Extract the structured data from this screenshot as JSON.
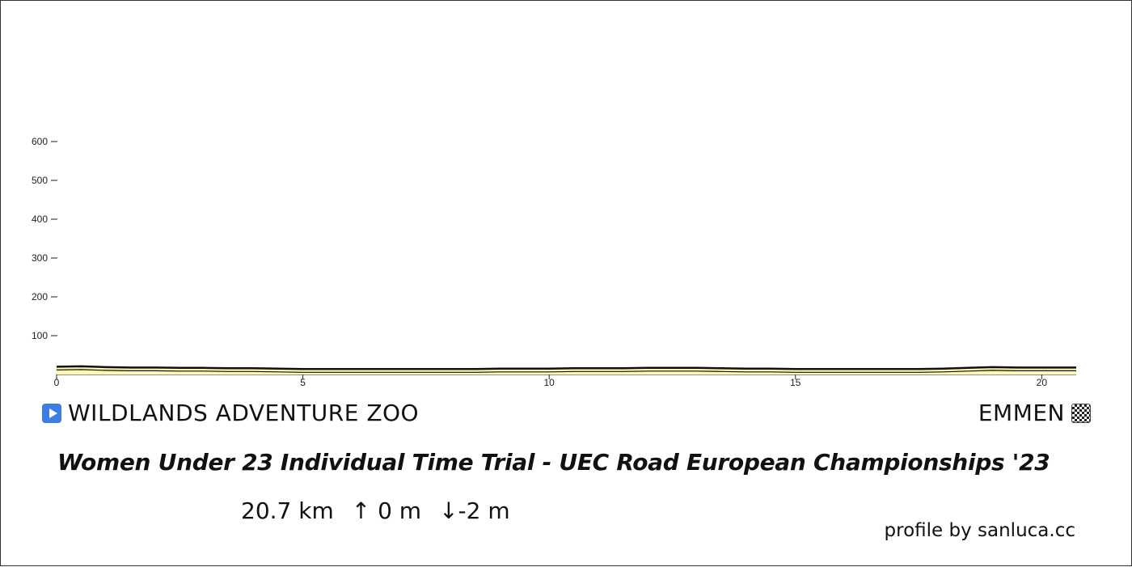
{
  "chart_data": {
    "type": "area",
    "title": "Women Under 23 Individual Time Trial - UEC Road European Championships '23",
    "xlabel": "",
    "ylabel": "",
    "xlim": [
      0,
      20.7
    ],
    "ylim": [
      0,
      600
    ],
    "x_ticks": [
      0,
      5,
      10,
      15,
      20
    ],
    "y_ticks": [
      100,
      200,
      300,
      400,
      500,
      600
    ],
    "grid": false,
    "fill_color": "#fff6b0",
    "line_color": "#111111",
    "x": [
      0,
      0.5,
      1.0,
      1.5,
      2.0,
      2.5,
      3.0,
      3.5,
      4.0,
      4.5,
      5.0,
      5.5,
      6.0,
      6.5,
      7.0,
      7.5,
      8.0,
      8.5,
      9.0,
      9.5,
      10.0,
      10.5,
      11.0,
      11.5,
      12.0,
      12.5,
      13.0,
      13.5,
      14.0,
      14.5,
      15.0,
      15.5,
      16.0,
      16.5,
      17.0,
      17.5,
      18.0,
      18.5,
      19.0,
      19.5,
      20.0,
      20.7
    ],
    "values": [
      8,
      9,
      7,
      6,
      6,
      5,
      5,
      4,
      4,
      3,
      2,
      2,
      2,
      2,
      2,
      2,
      2,
      2,
      3,
      3,
      3,
      4,
      4,
      4,
      5,
      5,
      5,
      4,
      3,
      3,
      2,
      2,
      2,
      2,
      2,
      2,
      3,
      5,
      7,
      6,
      6,
      6
    ]
  },
  "start": {
    "label": "WILDLANDS ADVENTURE ZOO",
    "icon": "play-icon"
  },
  "finish": {
    "label": "EMMEN",
    "icon": "checkered-flag-icon"
  },
  "title": "Women Under 23 Individual Time Trial - UEC Road European Championships '23",
  "stats": {
    "distance": "20.7 km",
    "ascent": "↑ 0 m",
    "descent": "↓-2 m"
  },
  "credit": "profile by sanluca.cc"
}
